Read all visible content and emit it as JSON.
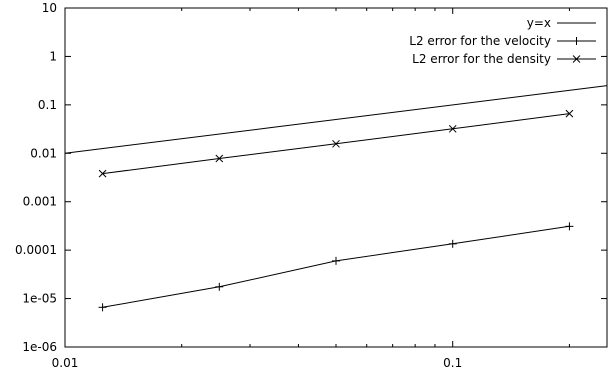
{
  "chart_data": {
    "type": "line",
    "title": "",
    "xlabel": "",
    "ylabel": "",
    "x_scale": "log",
    "y_scale": "log",
    "xlim": [
      0.01,
      0.25
    ],
    "ylim": [
      1e-06,
      10
    ],
    "grid": false,
    "legend_position": "top-right",
    "x_ticks": [
      {
        "value": 0.01,
        "label": "0.01"
      },
      {
        "value": 0.1,
        "label": "0.1"
      }
    ],
    "y_ticks": [
      {
        "value": 1e-06,
        "label": "1e-06"
      },
      {
        "value": 1e-05,
        "label": "1e-05"
      },
      {
        "value": 0.0001,
        "label": "0.0001"
      },
      {
        "value": 0.001,
        "label": "0.001"
      },
      {
        "value": 0.01,
        "label": "0.01"
      },
      {
        "value": 0.1,
        "label": "0.1"
      },
      {
        "value": 1,
        "label": "1"
      },
      {
        "value": 10,
        "label": "10"
      }
    ],
    "series": [
      {
        "name": "y=x",
        "marker": "none",
        "x": [
          0.01,
          0.25
        ],
        "y": [
          0.01,
          0.25
        ]
      },
      {
        "name": "L2 error for the velocity",
        "marker": "plus",
        "x": [
          0.0125,
          0.025,
          0.05,
          0.1,
          0.2
        ],
        "y": [
          6.6e-06,
          1.75e-05,
          6e-05,
          0.000135,
          0.00031
        ]
      },
      {
        "name": "L2 error for the density",
        "marker": "cross",
        "x": [
          0.0125,
          0.025,
          0.05,
          0.1,
          0.2
        ],
        "y": [
          0.0038,
          0.0078,
          0.0157,
          0.032,
          0.066
        ]
      }
    ]
  }
}
